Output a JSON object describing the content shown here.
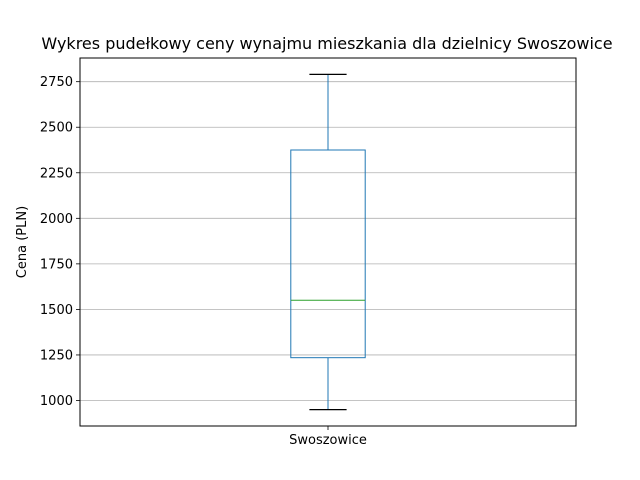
{
  "chart_data": {
    "type": "box",
    "title": "Wykres pudełkowy ceny wynajmu mieszkania dla dzielnicy  Swoszowice",
    "xlabel": "",
    "ylabel": "Cena (PLN)",
    "ylim": [
      860,
      2880
    ],
    "yticks": [
      1000,
      1250,
      1500,
      1750,
      2000,
      2250,
      2500,
      2750
    ],
    "categories": [
      "Swoszowice"
    ],
    "boxes": [
      {
        "category": "Swoszowice",
        "whisker_low": 950,
        "q1": 1235,
        "median": 1550,
        "q3": 2375,
        "whisker_high": 2790
      }
    ],
    "grid": "horizontal",
    "colors": {
      "box": "#1f77b4",
      "median": "#2ca02c",
      "whisker": "#1f77b4",
      "cap": "#000000",
      "grid": "#b0b0b0"
    }
  }
}
